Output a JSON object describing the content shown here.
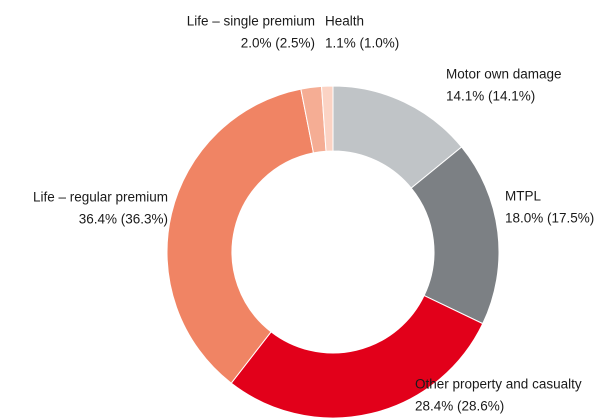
{
  "chart_data": {
    "type": "donut",
    "categories": [
      "Motor own damage",
      "MTPL",
      "Other property and casualty",
      "Life – regular premium",
      "Life – single premium",
      "Health"
    ],
    "values": [
      14.1,
      18.0,
      28.4,
      36.4,
      2.0,
      1.1
    ],
    "value_labels": [
      "14.1% (14.1%)",
      "18.0% (17.5%)",
      "28.4% (28.6%)",
      "36.4% (36.3%)",
      "2.0% (2.5%)",
      "1.1% (1.0%)"
    ],
    "colors": [
      "#c0c4c7",
      "#7c8084",
      "#e2001a",
      "#f08464",
      "#f5ad94",
      "#fbd3c4"
    ]
  }
}
